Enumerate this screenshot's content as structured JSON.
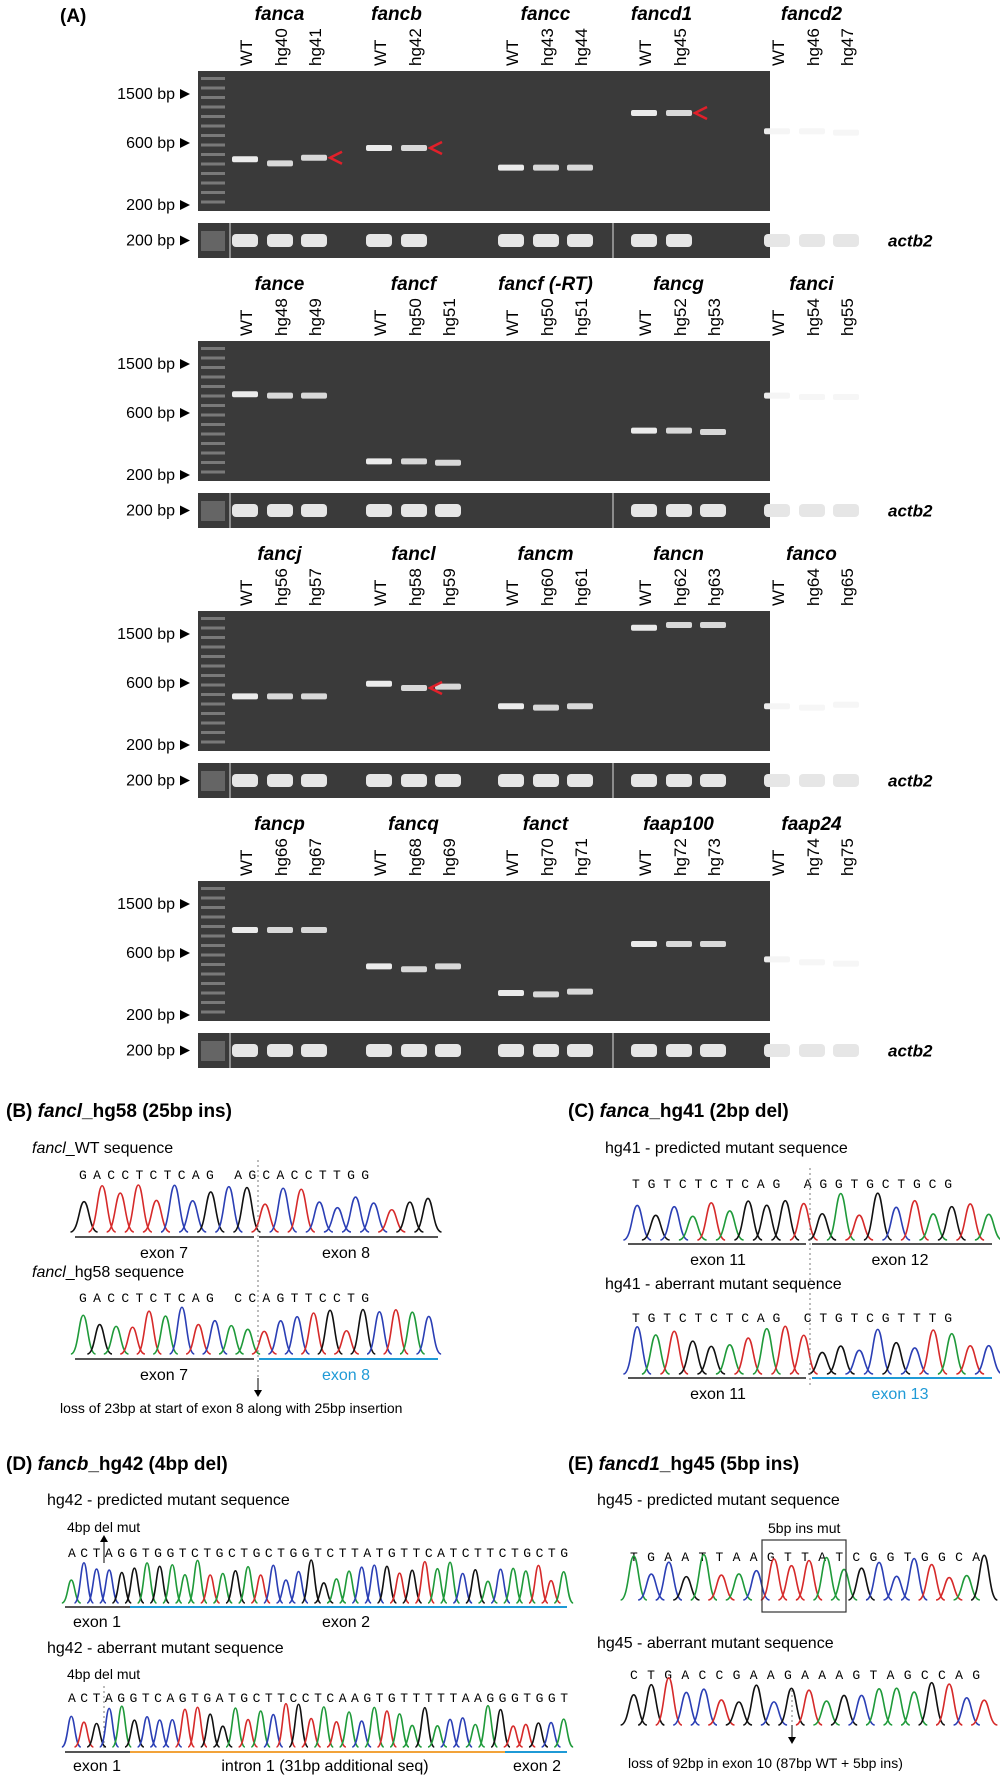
{
  "panel_a": {
    "label": "(A)",
    "ladder_labels": [
      "1500 bp",
      "600 bp",
      "200 bp"
    ],
    "actb_ladder_label": "200 bp",
    "reference_label": "actb2",
    "rows": [
      {
        "genes": [
          {
            "name": "fanca",
            "lanes": [
              "WT",
              "hg40",
              "hg41"
            ],
            "bands": [
              0.63,
              0.66,
              0.62
            ],
            "arrow_lane": 2
          },
          {
            "name": "fancb",
            "lanes": [
              "WT",
              "hg42"
            ],
            "bands": [
              0.55,
              0.55
            ],
            "arrow_lane": 1
          },
          {
            "name": "fancc",
            "lanes": [
              "WT",
              "hg43",
              "hg44"
            ],
            "bands": [
              0.69,
              0.69,
              0.69
            ],
            "arrow_lane": -1
          },
          {
            "name": "fancd1",
            "lanes": [
              "WT",
              "hg45"
            ],
            "bands": [
              0.3,
              0.3
            ],
            "arrow_lane": 1
          },
          {
            "name": "fancd2",
            "lanes": [
              "WT",
              "hg46",
              "hg47"
            ],
            "bands": [
              0.43,
              0.43,
              0.44
            ],
            "arrow_lane": -1
          }
        ]
      },
      {
        "genes": [
          {
            "name": "fance",
            "lanes": [
              "WT",
              "hg48",
              "hg49"
            ],
            "bands": [
              0.38,
              0.39,
              0.39
            ],
            "arrow_lane": -1
          },
          {
            "name": "fancf",
            "lanes": [
              "WT",
              "hg50",
              "hg51"
            ],
            "bands": [
              0.86,
              0.86,
              0.87
            ],
            "arrow_lane": -1
          },
          {
            "name": "fancf (-RT)",
            "lanes": [
              "WT",
              "hg50",
              "hg51"
            ],
            "bands": [],
            "arrow_lane": -1
          },
          {
            "name": "fancg",
            "lanes": [
              "WT",
              "hg52",
              "hg53"
            ],
            "bands": [
              0.64,
              0.64,
              0.65
            ],
            "arrow_lane": -1
          },
          {
            "name": "fanci",
            "lanes": [
              "WT",
              "hg54",
              "hg55"
            ],
            "bands": [
              0.39,
              0.4,
              0.4
            ],
            "arrow_lane": -1
          }
        ]
      },
      {
        "genes": [
          {
            "name": "fancj",
            "lanes": [
              "WT",
              "hg56",
              "hg57"
            ],
            "bands": [
              0.61,
              0.61,
              0.61
            ],
            "arrow_lane": -1
          },
          {
            "name": "fancl",
            "lanes": [
              "WT",
              "hg58",
              "hg59"
            ],
            "bands": [
              0.52,
              0.55,
              0.54
            ],
            "arrow_lane": 1
          },
          {
            "name": "fancm",
            "lanes": [
              "WT",
              "hg60",
              "hg61"
            ],
            "bands": [
              0.68,
              0.69,
              0.68
            ],
            "arrow_lane": -1
          },
          {
            "name": "fancn",
            "lanes": [
              "WT",
              "hg62",
              "hg63"
            ],
            "bands": [
              0.12,
              0.1,
              0.1
            ],
            "arrow_lane": -1
          },
          {
            "name": "fanco",
            "lanes": [
              "WT",
              "hg64",
              "hg65"
            ],
            "bands": [
              0.68,
              0.69,
              0.67
            ],
            "arrow_lane": -1
          }
        ]
      },
      {
        "genes": [
          {
            "name": "fancp",
            "lanes": [
              "WT",
              "hg66",
              "hg67"
            ],
            "bands": [
              0.35,
              0.35,
              0.35
            ],
            "arrow_lane": -1
          },
          {
            "name": "fancq",
            "lanes": [
              "WT",
              "hg68",
              "hg69"
            ],
            "bands": [
              0.61,
              0.63,
              0.61
            ],
            "arrow_lane": -1
          },
          {
            "name": "fanct",
            "lanes": [
              "WT",
              "hg70",
              "hg71"
            ],
            "bands": [
              0.8,
              0.81,
              0.79
            ],
            "arrow_lane": -1
          },
          {
            "name": "faap100",
            "lanes": [
              "WT",
              "hg72",
              "hg73"
            ],
            "bands": [
              0.45,
              0.45,
              0.45
            ],
            "arrow_lane": -1
          },
          {
            "name": "faap24",
            "lanes": [
              "WT",
              "hg74",
              "hg75"
            ],
            "bands": [
              0.56,
              0.58,
              0.59
            ],
            "arrow_lane": -1
          }
        ]
      }
    ]
  },
  "panel_b": {
    "label": "(B)",
    "gene": "fancl",
    "title_rest": "_hg58 (25bp ins)",
    "wt_gene": "fancl",
    "wt_label": "_WT sequence",
    "wt_seq": "GACCTCTCAG AGCACCTTGG",
    "wt_exons": [
      "exon 7",
      "exon 8"
    ],
    "mut_gene": "fancl",
    "mut_label": "_hg58 sequence",
    "mut_seq": "GACCTCTCAG CCAGTTCCTG",
    "mut_exons": [
      "exon 7",
      "exon 8"
    ],
    "note": "loss of 23bp at start of exon 8 along with 25bp insertion"
  },
  "panel_c": {
    "label": "(C)",
    "gene": "fanca",
    "title_rest": "_hg41 (2bp del)",
    "pred_label": "hg41 - predicted mutant sequence",
    "pred_seq": "TGTCTCTCAG AGGTGCTGCG",
    "pred_exons": [
      "exon 11",
      "exon 12"
    ],
    "ab_label": "hg41 - aberrant mutant sequence",
    "ab_seq": "TGTCTCTCAG CTGTCGTTTG",
    "ab_exons": [
      "exon 11",
      "exon 13"
    ]
  },
  "panel_d": {
    "label": "(D)",
    "gene": "fancb",
    "title_rest": "_hg42 (4bp del)",
    "pred_label": "hg42 - predicted mutant sequence",
    "del_label": "4bp del mut",
    "pred_seq": "ACTAGGTGGTCTGCTGCTGGTCTTATGTTCATCTTCTGCTG",
    "pred_exons": [
      "exon 1",
      "exon 2"
    ],
    "ab_label": "hg42 - aberrant mutant sequence",
    "ab_del_label": "4bp del mut",
    "ab_seq": "ACTAGGTCAGTGATGCTTCCTCAAGTGTTTTTAAGGGTGGT",
    "ab_regions": [
      "exon 1",
      "intron 1 (31bp additional seq)",
      "exon 2"
    ]
  },
  "panel_e": {
    "label": "(E)",
    "gene": "fancd1",
    "title_rest": "_hg45 (5bp ins)",
    "pred_label": "hg45 - predicted mutant sequence",
    "ins_label": "5bp ins mut",
    "pred_seq": "TGAATTAAGTTATCGGTGGCA",
    "ab_label": "hg45 - aberrant mutant sequence",
    "ab_seq": "CTGACCGAAGAAAGTAGCCAG",
    "note": "loss of 92bp in exon 10 (87bp WT + 5bp ins)"
  },
  "colors": {
    "gel_bg": "#3a3a3a",
    "band": "#f4f4f4",
    "arrow": "#e0202a",
    "exon_new": "#1f9ad6",
    "intron": "#f2a33a",
    "line_dark": "#555555"
  }
}
